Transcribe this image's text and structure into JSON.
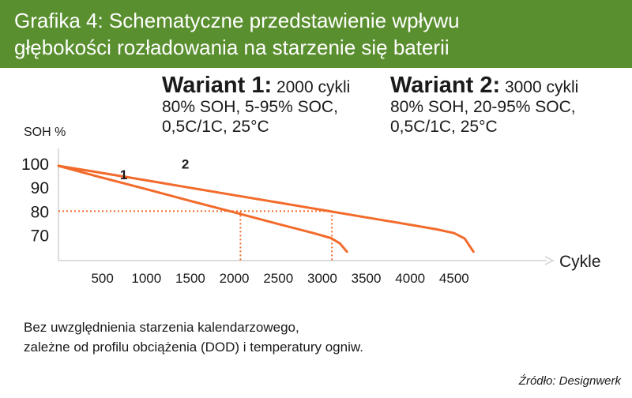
{
  "header": {
    "title_line1": "Grafika 4: Schematyczne przedstawienie wpływu",
    "title_line2": "głębokości rozładowania na starzenie się baterii",
    "background": "#5a8f2f"
  },
  "variants": [
    {
      "name": "Wariant 1:",
      "cycles": "2000 cykli",
      "line2": "80% SOH, 5-95% SOC,",
      "line3": "0,5C/1C, 25°C"
    },
    {
      "name": "Wariant 2:",
      "cycles": "3000 cykli",
      "line2": "80% SOH, 20-95% SOC,",
      "line3": "0,5C/1C, 25°C"
    }
  ],
  "note": {
    "line1": "Bez uwzględnienia starzenia kalendarzowego,",
    "line2": "zależne od profilu obciążenia (DOD) i temperatury ogniw."
  },
  "source": "Źródło: Designwerk",
  "chart_data": {
    "type": "line",
    "xlabel": "Cykle",
    "ylabel": "SOH %",
    "x_ticks": [
      500,
      1000,
      1500,
      2000,
      2500,
      3000,
      3500,
      4000,
      4500
    ],
    "y_ticks": [
      100,
      90,
      80,
      70
    ],
    "xlim": [
      0,
      5000
    ],
    "ylim": [
      50,
      100
    ],
    "line_color": "#f26b2b",
    "reference_lines": [
      {
        "axis": "y",
        "value": 80,
        "style": "dotted"
      },
      {
        "axis": "x",
        "value": 2070,
        "style": "dotted"
      },
      {
        "axis": "x",
        "value": 3110,
        "style": "dotted"
      }
    ],
    "series": [
      {
        "name": "1",
        "x": [
          0,
          500,
          1000,
          1500,
          2000,
          2500,
          2900,
          3100,
          3200,
          3280
        ],
        "y": [
          99,
          94,
          89.2,
          84.3,
          79.5,
          74.6,
          70.8,
          68.7,
          66.5,
          63
        ]
      },
      {
        "name": "2",
        "x": [
          0,
          500,
          1000,
          1500,
          2000,
          2500,
          3000,
          3500,
          4000,
          4300,
          4500,
          4620,
          4720
        ],
        "y": [
          99,
          96,
          92.9,
          89.8,
          86.7,
          83.6,
          80.5,
          77.4,
          74.3,
          72.4,
          70.8,
          68.5,
          63
        ]
      }
    ]
  }
}
